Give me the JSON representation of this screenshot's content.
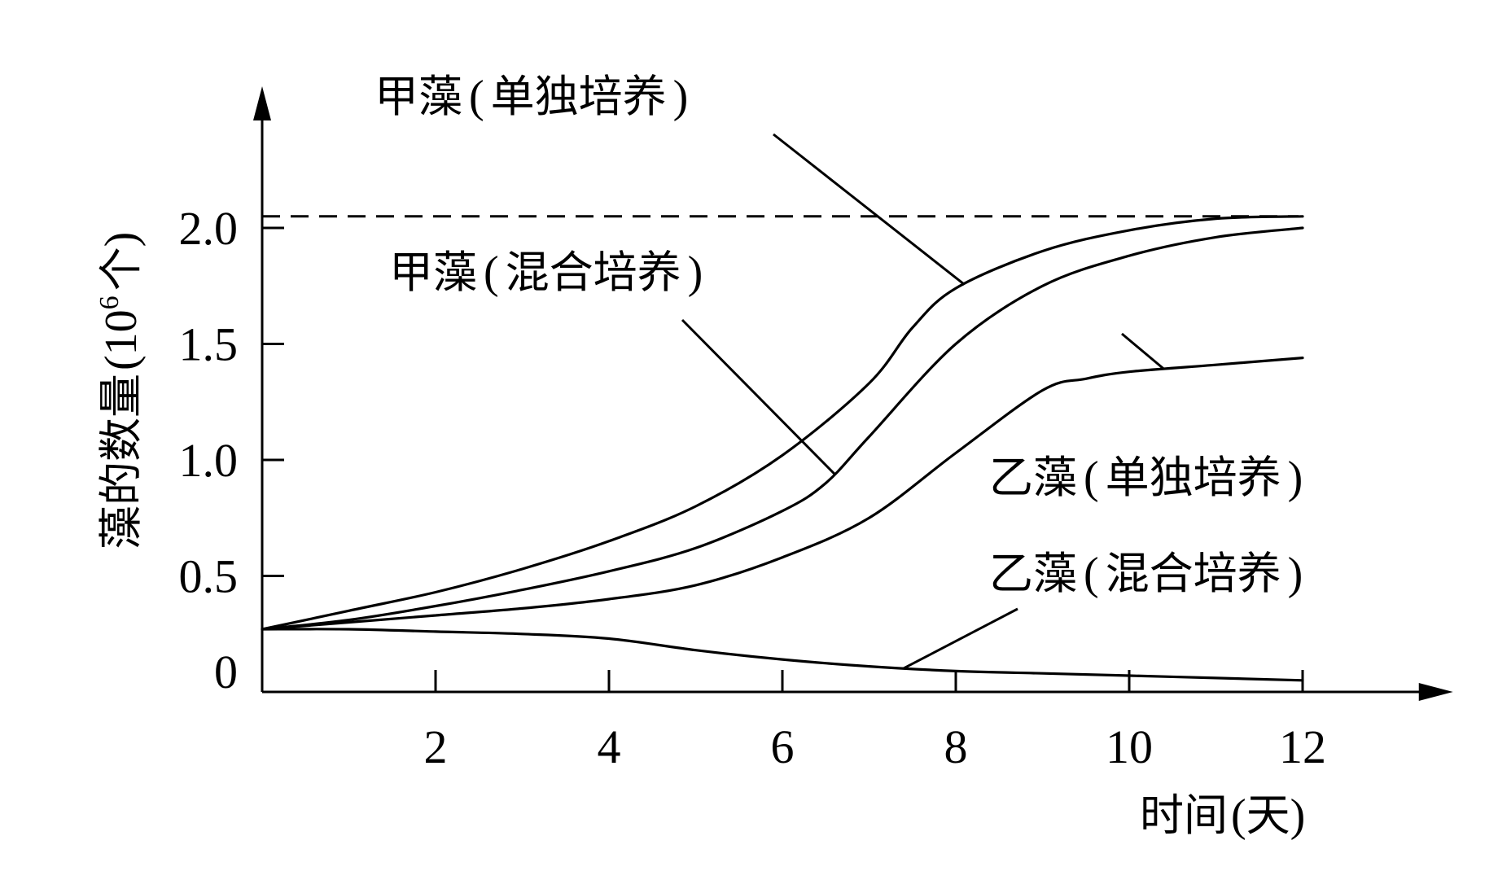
{
  "chart_data": {
    "type": "line",
    "xlabel": "时间(天)",
    "ylabel": "藻的数量(10⁶个)",
    "xlim": [
      0,
      13.5
    ],
    "ylim": [
      0,
      2.6
    ],
    "xticks": [
      2,
      4,
      6,
      8,
      10,
      12
    ],
    "yticks": [
      0,
      0.5,
      1.0,
      1.5,
      2.0
    ],
    "xtick_labels": [
      "2",
      "4",
      "6",
      "8",
      "10",
      "12"
    ],
    "ytick_labels": [
      "0",
      "0.5",
      "1.0",
      "1.5",
      "2.0"
    ],
    "reference_line": {
      "y": 2.05,
      "style": "dashed"
    },
    "series": [
      {
        "name": "甲藻(单独培养)",
        "x": [
          0,
          1,
          2,
          3,
          4,
          5,
          6,
          7,
          7.5,
          8,
          9,
          10,
          11,
          12
        ],
        "y": [
          0.27,
          0.35,
          0.43,
          0.53,
          0.65,
          0.8,
          1.02,
          1.33,
          1.57,
          1.74,
          1.9,
          1.99,
          2.04,
          2.05
        ]
      },
      {
        "name": "甲藻(混合培养)",
        "x": [
          0,
          1,
          2,
          3,
          4,
          5,
          6,
          6.5,
          7,
          8,
          9,
          10,
          11,
          12
        ],
        "y": [
          0.27,
          0.31,
          0.37,
          0.44,
          0.52,
          0.62,
          0.78,
          0.9,
          1.1,
          1.5,
          1.75,
          1.88,
          1.96,
          2.0
        ]
      },
      {
        "name": "乙藻(单独培养)",
        "x": [
          0,
          1,
          2,
          3,
          4,
          5,
          6,
          7,
          8,
          9,
          9.5,
          10,
          11,
          12
        ],
        "y": [
          0.27,
          0.3,
          0.33,
          0.36,
          0.4,
          0.46,
          0.58,
          0.75,
          1.03,
          1.3,
          1.35,
          1.38,
          1.41,
          1.44
        ]
      },
      {
        "name": "乙藻(混合培养)",
        "x": [
          0,
          1,
          2,
          3,
          4,
          5,
          6,
          7,
          8,
          9,
          10,
          11,
          12
        ],
        "y": [
          0.27,
          0.27,
          0.26,
          0.25,
          0.23,
          0.18,
          0.14,
          0.11,
          0.09,
          0.08,
          0.07,
          0.06,
          0.05
        ]
      }
    ],
    "annotations": [
      {
        "species": "甲藻",
        "condition": "单独培养",
        "target_series": 0,
        "target_x": 8.1
      },
      {
        "species": "甲藻",
        "condition": "混合培养",
        "target_series": 1,
        "target_x": 6.6
      },
      {
        "species": "乙藻",
        "condition": "单独培养",
        "target_series": 2,
        "target_x": 10.4
      },
      {
        "species": "乙藻",
        "condition": "混合培养",
        "target_series": 3,
        "target_x": 7.4
      }
    ],
    "xlabel_parts": {
      "text": "时间",
      "unit": "天"
    },
    "ylabel_parts": {
      "text": "藻的数量",
      "unit_base": "10",
      "unit_exp": "6",
      "unit_word": "个"
    },
    "grid": false,
    "legend": "none"
  }
}
